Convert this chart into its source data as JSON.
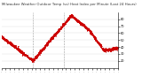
{
  "title": "Milwaukee Weather Outdoor Temp (vs) Heat Index per Minute (Last 24 Hours)",
  "background_color": "#ffffff",
  "line_color": "#cc0000",
  "marker": ".",
  "markersize": 1.0,
  "linewidth": 0.5,
  "ylim": [
    10,
    90
  ],
  "yticks": [
    20,
    30,
    40,
    50,
    60,
    70,
    80
  ],
  "vline_positions": [
    0.27,
    0.54
  ],
  "num_points": 1440,
  "title_fontsize": 2.8,
  "tick_fontsize": 2.5,
  "num_xticks": 28
}
